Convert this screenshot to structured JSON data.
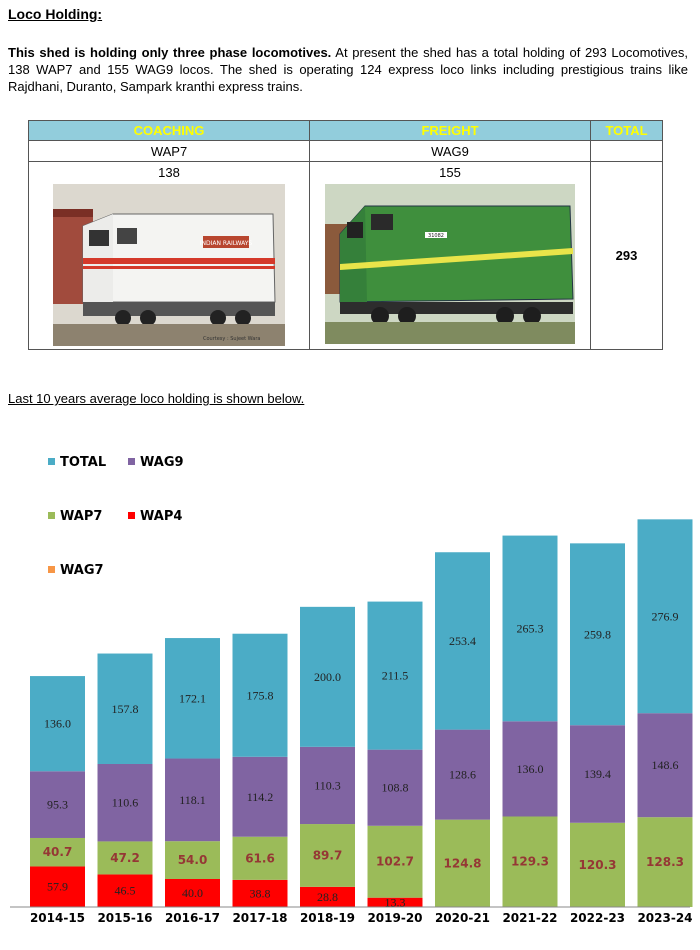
{
  "heading": "Loco Holding:",
  "intro": {
    "bold": "This shed is holding only three phase locomotives.",
    "rest": " At present the shed has a total holding of 293 Locomotives, 138 WAP7 and 155 WAG9 locos. The shed is operating 124 express loco links including prestigious trains like Rajdhani, Duranto, Sampark kranthi express trains."
  },
  "table": {
    "headers": [
      "COACHING",
      "FREIGHT",
      "TOTAL"
    ],
    "types": [
      "WAP7",
      "WAG9"
    ],
    "counts": [
      "138",
      "155"
    ],
    "total": "293",
    "photo_credit": "Courtesy : Sujeet Wara",
    "wap7_text": "INDIAN RAILWAYS",
    "wag9_number": "31082"
  },
  "chart_caption": "Last 10 years average loco holding is shown below.",
  "chart_data": {
    "type": "bar",
    "stacked": true,
    "categories": [
      "2014-15",
      "2015-16",
      "2016-17",
      "2017-18",
      "2018-19",
      "2019-20",
      "2020-21",
      "2021-22",
      "2022-23",
      "2023-24"
    ],
    "series": [
      {
        "name": "WAP4",
        "color": "#ff0000",
        "values": [
          57.9,
          46.5,
          40.0,
          38.8,
          28.8,
          13.3,
          0,
          0,
          0,
          0
        ]
      },
      {
        "name": "WAP7",
        "color": "#9bbb59",
        "values": [
          40.7,
          47.2,
          54.0,
          61.6,
          89.7,
          102.7,
          124.8,
          129.3,
          120.3,
          128.3
        ]
      },
      {
        "name": "WAG9",
        "color": "#8064a2",
        "values": [
          95.3,
          110.6,
          118.1,
          114.2,
          110.3,
          108.8,
          128.6,
          136.0,
          139.4,
          148.6
        ]
      },
      {
        "name": "TOTAL",
        "color": "#4bacc6",
        "values": [
          136.0,
          157.8,
          172.1,
          175.8,
          200.0,
          211.5,
          253.4,
          265.3,
          259.8,
          276.9
        ]
      },
      {
        "name": "WAG7",
        "color": "#f79646",
        "values": [
          0,
          0,
          0,
          0,
          0,
          0,
          0,
          0,
          0,
          0
        ]
      }
    ],
    "labels": {
      "WAP4": [
        "57.9",
        "46.5",
        "40.0",
        "38.8",
        "28.8",
        "13.3",
        "",
        "",
        "",
        ""
      ],
      "WAP7": [
        "40.7",
        "47.2",
        "54.0",
        "61.6",
        "89.7",
        "102.7",
        "124.8",
        "129.3",
        "120.3",
        "128.3"
      ],
      "WAG9": [
        "95.3",
        "110.6",
        "118.1",
        "114.2",
        "110.3",
        "108.8",
        "128.6",
        "136.0",
        "139.4",
        "148.6"
      ],
      "TOTAL": [
        "136.0",
        "157.8",
        "172.1",
        "175.8",
        "200.0",
        "211.5",
        "253.4",
        "265.3",
        "259.8",
        "276.9"
      ]
    },
    "legend": [
      "TOTAL",
      "WAG9",
      "WAP7",
      "WAP4",
      "WAG7"
    ],
    "legend_position": "top-left",
    "grid": false
  }
}
